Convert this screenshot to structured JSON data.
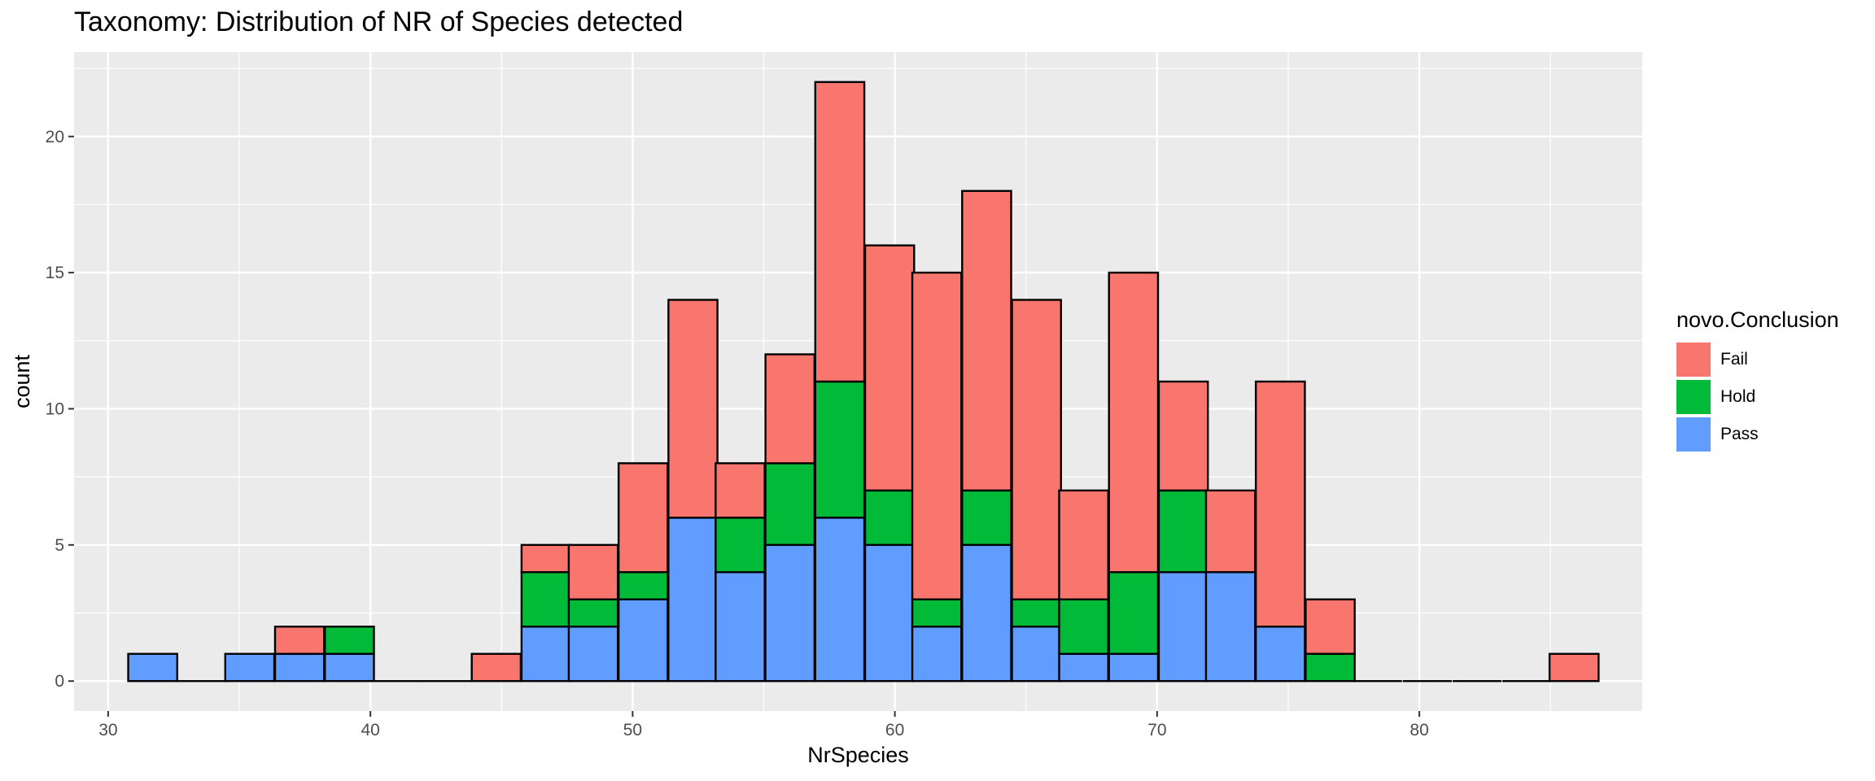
{
  "chart_data": {
    "type": "bar",
    "title": "Taxonomy: Distribution of NR of Species detected",
    "xlabel": "NrSpecies",
    "ylabel": "count",
    "xlim": [
      28.7,
      88.5
    ],
    "ylim": [
      -1.1,
      23.1
    ],
    "x_ticks": [
      30,
      40,
      50,
      60,
      70,
      80
    ],
    "y_ticks": [
      0,
      5,
      10,
      15,
      20
    ],
    "grid": true,
    "stacked": true,
    "legend_title": "novo.Conclusion",
    "legend_position": "right",
    "bin_width": 1.87,
    "categories": [
      31.7,
      33.6,
      35.4,
      37.3,
      39.2,
      41.1,
      42.9,
      44.8,
      46.7,
      48.5,
      50.4,
      52.3,
      54.1,
      56.0,
      57.9,
      59.8,
      61.6,
      63.5,
      65.4,
      67.2,
      69.1,
      71.0,
      72.8,
      74.7,
      76.6,
      78.4,
      80.3,
      82.2,
      84.1,
      85.9
    ],
    "series": [
      {
        "name": "Pass",
        "color": "#619cff",
        "values": [
          1,
          0,
          1,
          1,
          1,
          0,
          0,
          0,
          2,
          2,
          3,
          6,
          4,
          5,
          6,
          5,
          2,
          5,
          2,
          1,
          1,
          4,
          4,
          2,
          0,
          0,
          0,
          0,
          0,
          0
        ]
      },
      {
        "name": "Hold",
        "color": "#00ba38",
        "values": [
          0,
          0,
          0,
          0,
          1,
          0,
          0,
          0,
          2,
          1,
          1,
          0,
          2,
          3,
          5,
          2,
          1,
          2,
          1,
          2,
          3,
          3,
          0,
          0,
          1,
          0,
          0,
          0,
          0,
          0
        ]
      },
      {
        "name": "Fail",
        "color": "#f8766d",
        "values": [
          0,
          0,
          0,
          1,
          0,
          0,
          0,
          1,
          1,
          2,
          4,
          8,
          2,
          4,
          11,
          9,
          12,
          11,
          11,
          4,
          11,
          4,
          3,
          9,
          2,
          0,
          0,
          0,
          0,
          1
        ]
      }
    ],
    "legend_order": [
      "Fail",
      "Hold",
      "Pass"
    ],
    "panel_color": "#ebebeb",
    "grid_color": "#ffffff"
  }
}
